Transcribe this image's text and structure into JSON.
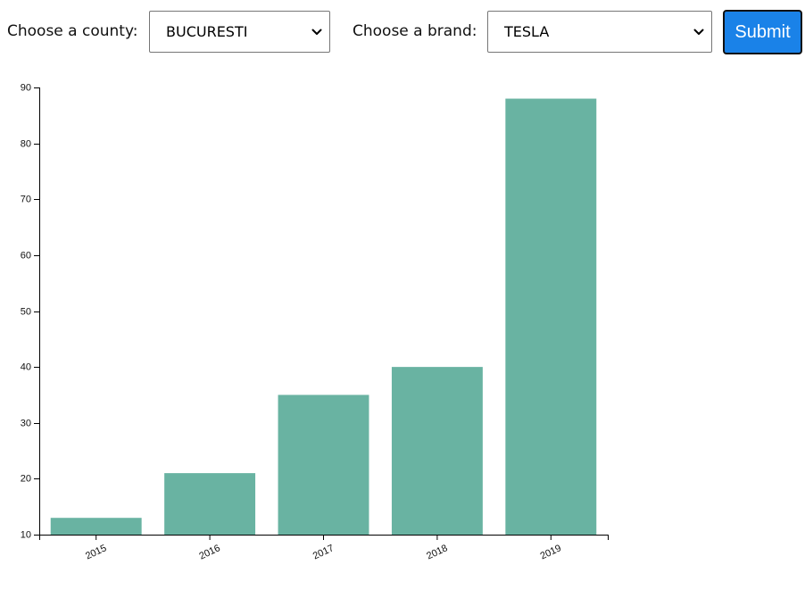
{
  "form": {
    "county_label": "Choose a county:",
    "county_value": "BUCURESTI",
    "brand_label": "Choose a brand:",
    "brand_value": "TESLA",
    "submit_label": "Submit"
  },
  "colors": {
    "bar": "#69b3a2",
    "submit": "#1a82e8"
  },
  "icons": {
    "select_arrow": "chevron-down-icon"
  },
  "chart_data": {
    "type": "bar",
    "categories": [
      "2015",
      "2016",
      "2017",
      "2018",
      "2019"
    ],
    "values": [
      13,
      21,
      35,
      40,
      88
    ],
    "y_ticks": [
      10,
      20,
      30,
      40,
      50,
      60,
      70,
      80,
      90
    ],
    "ylim": [
      10,
      90
    ],
    "title": "",
    "xlabel": "",
    "ylabel": "",
    "grid": false,
    "legend": "none"
  }
}
